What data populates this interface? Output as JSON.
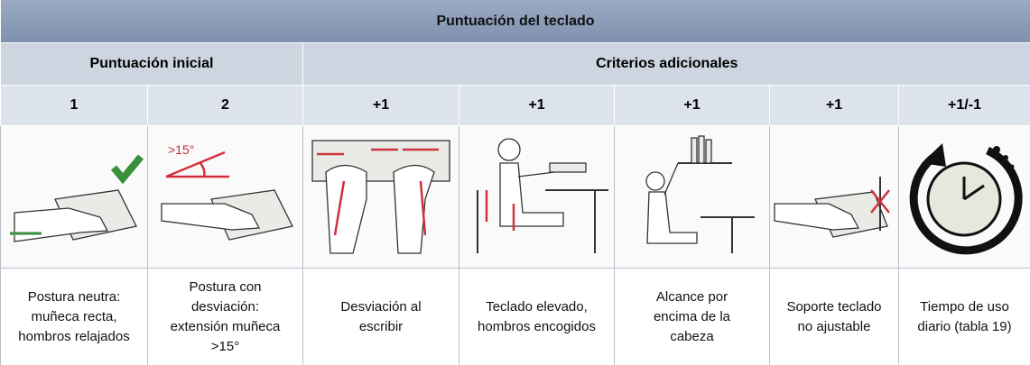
{
  "header": {
    "title": "Puntuación del teclado"
  },
  "groups": [
    "Puntuación inicial",
    "Criterios adicionales"
  ],
  "scores": [
    1,
    2,
    "+1",
    "+1",
    "+1",
    "+1",
    "+1/-1"
  ],
  "annotations": {
    "angle": ">15°"
  },
  "descriptions": [
    [
      "Postura neutra:",
      "muñeca recta,",
      "hombros relajados"
    ],
    [
      "Postura con",
      "desviación:",
      "extensión muñeca",
      ">15°"
    ],
    [
      "Desviación al",
      "escribir"
    ],
    [
      "Teclado elevado,",
      "hombros encogidos"
    ],
    [
      "Alcance por",
      "encima de la",
      "cabeza"
    ],
    [
      "Soporte teclado",
      "no ajustable"
    ],
    [
      "Tiempo de uso",
      "diario (tabla 19)"
    ]
  ]
}
